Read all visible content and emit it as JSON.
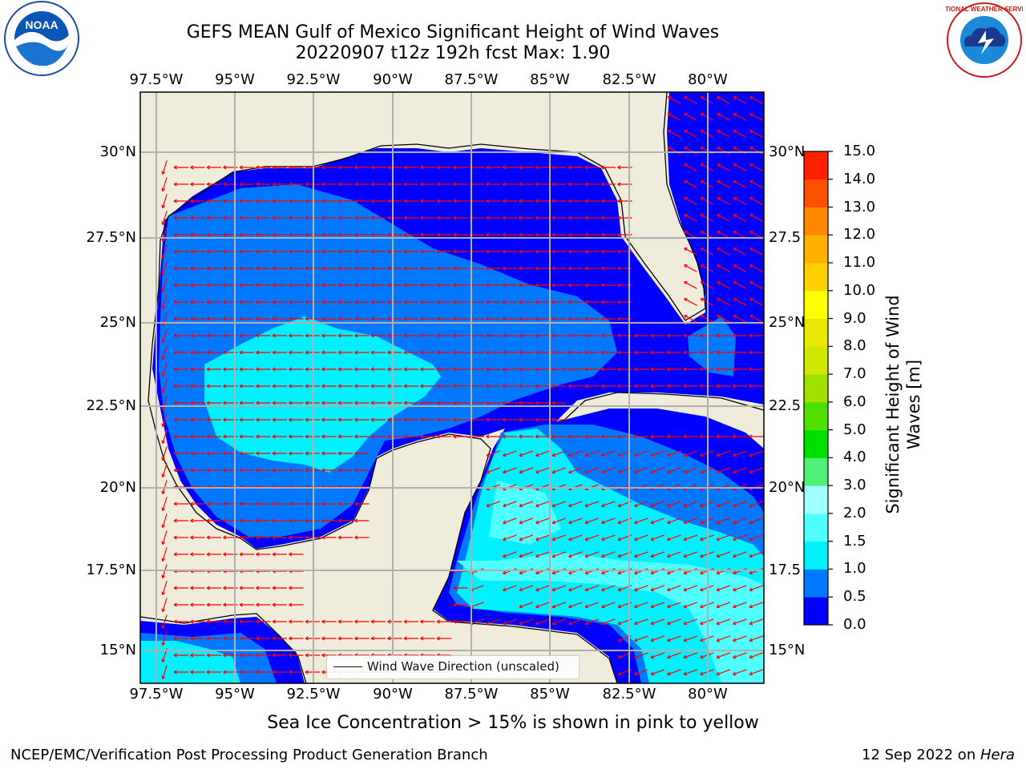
{
  "header": {
    "title_line1": "GEFS MEAN Gulf of Mexico Significant Height of Wind Waves",
    "title_line2": "20220907 t12z 192h fcst   Max: 1.90"
  },
  "logos": {
    "left": "NOAA",
    "right": "NATIONAL WEATHER SERVICE"
  },
  "map": {
    "lon_labels": [
      "97.5°W",
      "95°W",
      "92.5°W",
      "90°W",
      "87.5°W",
      "85°W",
      "82.5°W",
      "80°W"
    ],
    "lat_labels_left": [
      "30°N",
      "27.5°N",
      "25°N",
      "22.5°N",
      "20°N",
      "17.5°N",
      "15°N"
    ],
    "lat_labels_right": [
      "30°N",
      "27.5",
      "25°N",
      "22.5",
      "20°N",
      "17.5",
      "15°N"
    ],
    "legend_label": "Wind Wave Direction (unscaled)"
  },
  "colorbar": {
    "label": "Significant Height of Wind Waves [m]",
    "label_line1": "Significant Height of Wind",
    "label_line2": "Waves [m]",
    "ticks": [
      "0.0",
      "0.5",
      "1.0",
      "1.5",
      "2.0",
      "3.0",
      "4.0",
      "5.0",
      "6.0",
      "7.0",
      "8.0",
      "9.0",
      "10.0",
      "11.0",
      "12.0",
      "13.0",
      "14.0",
      "15.0"
    ],
    "colors": [
      "#0000ff",
      "#0078ff",
      "#00f0ff",
      "#50ffff",
      "#a0ffff",
      "#50f078",
      "#00e000",
      "#50e000",
      "#a0e000",
      "#d0e800",
      "#e8e800",
      "#ffff00",
      "#ffd000",
      "#ffb000",
      "#ff8800",
      "#ff5000",
      "#ff2000",
      "#ff0000"
    ]
  },
  "footer": {
    "note": "Sea Ice Concentration > 15% is shown in pink to yellow",
    "left": "NCEP/EMC/Verification Post Processing Product Generation Branch",
    "right_date": "12 Sep 2022 on ",
    "right_host": "Hera"
  },
  "colors": {
    "land": "#efecdc",
    "wave_0_05": "#0000ff",
    "wave_05_10": "#0078ff",
    "wave_10_15": "#00f0ff",
    "wave_15_20": "#50ffff",
    "arrows": "#ff0000",
    "grid": "#b0b0b0"
  }
}
